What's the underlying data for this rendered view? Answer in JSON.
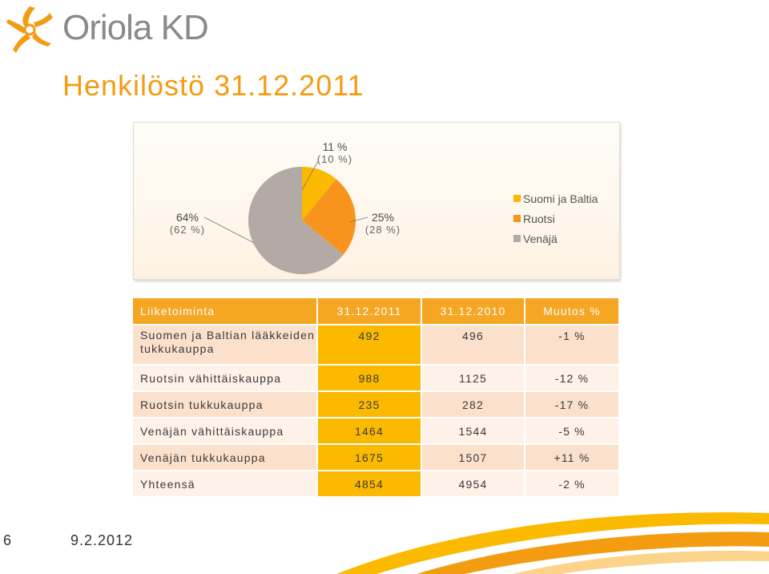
{
  "logo": {
    "text": "Oriola KD",
    "color": "#f39c12"
  },
  "title": "Henkilöstö 31.12.2011",
  "chart_data": {
    "type": "pie",
    "slices": [
      {
        "name": "Suomi ja Baltia",
        "value": 11,
        "label": "11 %",
        "prev_label": "(10 %)",
        "color": "#fbb900"
      },
      {
        "name": "Ruotsi",
        "value": 25,
        "label": "25%",
        "prev_label": "(28 %)",
        "color": "#f7941d"
      },
      {
        "name": "Venäjä",
        "value": 64,
        "label": "64%",
        "prev_label": "(62 %)",
        "color": "#b3aaa6"
      }
    ],
    "legend_position": "right"
  },
  "table": {
    "headers": [
      "Liiketoiminta",
      "31.12.2011",
      "31.12.2010",
      "Muutos %"
    ],
    "rows": [
      {
        "name": "Suomen ja Baltian lääkkeiden tukkukauppa",
        "v2011": "492",
        "v2010": "496",
        "change": "-1 %"
      },
      {
        "name": "Ruotsin vähittäiskauppa",
        "v2011": "988",
        "v2010": "1125",
        "change": "-12 %"
      },
      {
        "name": "Ruotsin tukkukauppa",
        "v2011": "235",
        "v2010": "282",
        "change": "-17 %"
      },
      {
        "name": "Venäjän vähittäiskauppa",
        "v2011": "1464",
        "v2010": "1544",
        "change": "-5 %"
      },
      {
        "name": "Venäjän tukkukauppa",
        "v2011": "1675",
        "v2010": "1507",
        "change": "+11 %"
      },
      {
        "name": "Yhteensä",
        "v2011": "4854",
        "v2010": "4954",
        "change": "-2 %"
      }
    ]
  },
  "footer": {
    "page_number": "6",
    "date": "9.2.2012"
  },
  "colors": {
    "accent": "#f39c12",
    "header_bg": "#f5a623",
    "highlight": "#fbb900"
  }
}
